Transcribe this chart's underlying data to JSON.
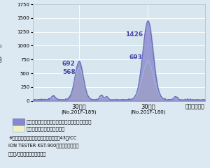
{
  "ylabel": "（個/CC）",
  "ylim": [
    0,
    1750
  ],
  "yticks": [
    0,
    250,
    500,
    750,
    1000,
    1250,
    1500,
    1750
  ],
  "bg_color": "#dce8f2",
  "plot_bg_color": "#d8e6f0",
  "series1_color": "#8888cc",
  "series1_alpha": 0.8,
  "series2_color": "#f0f0c0",
  "series2_border_color": "#99bbdd",
  "series1_line_color": "#6666bb",
  "series2_line_color": "#88aacc",
  "peak1_blue": 692,
  "peak1_yellow": 568,
  "peak2_blue": 1426,
  "peak2_yellow": 693,
  "label1": "水道水をコップに入れて森修焼の上にのせたもの",
  "label2": "水道水をコップに入れたもの",
  "xlabel1": "30秒後",
  "xlabel1_sub": "(No.201F-189)",
  "xlabel2": "30分後",
  "xlabel2_sub": "(No.201F-180)",
  "xlabel3": "（静置時間）",
  "footnote1": "※測定時の室内マイナスイオン数は平均43個/CC",
  "footnote2": "ION TESTER KST-900型（神戸電波製）",
  "footnote3": "（測定/遠赤外線応用研究会）"
}
